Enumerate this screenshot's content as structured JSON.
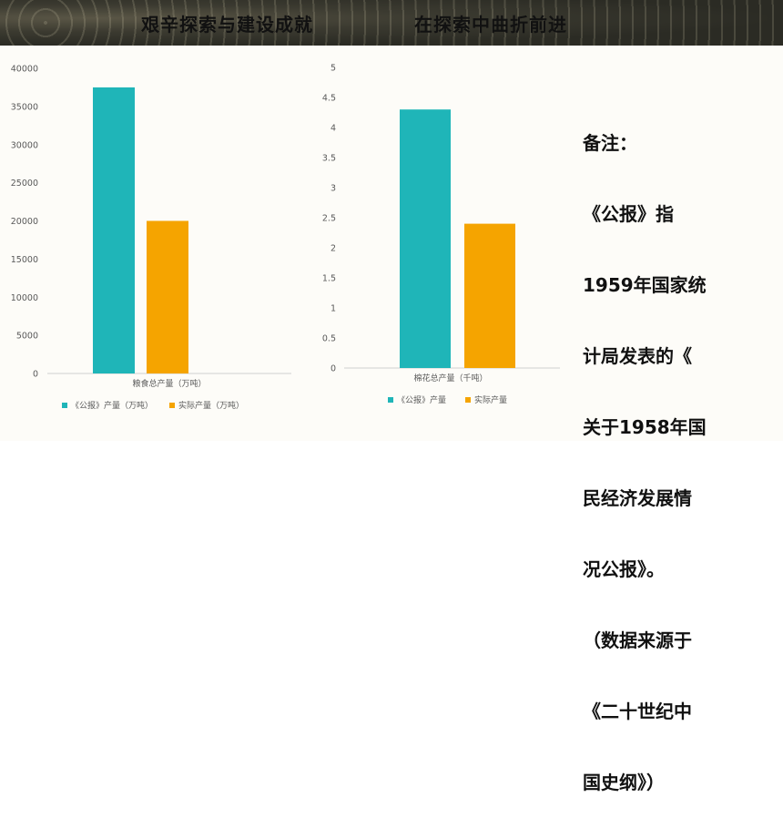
{
  "header": {
    "title_left": "艰辛探索与建设成就",
    "title_right": "在探索中曲折前进"
  },
  "chart_data": [
    {
      "type": "bar",
      "categories": [
        "粮食总产量（万吨）"
      ],
      "series": [
        {
          "name": "《公报》产量（万吨）",
          "values": [
            37500
          ],
          "color": "#1fb5b8"
        },
        {
          "name": "实际产量（万吨）",
          "values": [
            20000
          ],
          "color": "#f5a400"
        }
      ],
      "xlabel": "粮食总产量（万吨）",
      "ylabel": "",
      "ylim": [
        0,
        40000
      ],
      "yticks": [
        "0",
        "5000",
        "10000",
        "15000",
        "20000",
        "25000",
        "30000",
        "35000",
        "40000"
      ],
      "grid": false,
      "legend_position": "bottom"
    },
    {
      "type": "bar",
      "categories": [
        "棉花总产量（千吨）"
      ],
      "series": [
        {
          "name": "《公报》产量",
          "values": [
            4.3
          ],
          "color": "#1fb5b8"
        },
        {
          "name": "实际产量",
          "values": [
            2.4
          ],
          "color": "#f5a400"
        }
      ],
      "xlabel": "棉花总产量（千吨）",
      "ylabel": "",
      "ylim": [
        0,
        5
      ],
      "yticks": [
        "0",
        "0.5",
        "1",
        "1.5",
        "2",
        "2.5",
        "3",
        "3.5",
        "4",
        "4.5",
        "5"
      ],
      "grid": false,
      "legend_position": "bottom"
    }
  ],
  "note": {
    "lines": [
      "备注：",
      "《公报》指",
      "1959年国家统",
      "计局发表的《",
      "关于1958年国",
      "民经济发展情",
      "况公报》。",
      "（数据来源于",
      "《二十世纪中",
      "国史纲》）"
    ]
  }
}
